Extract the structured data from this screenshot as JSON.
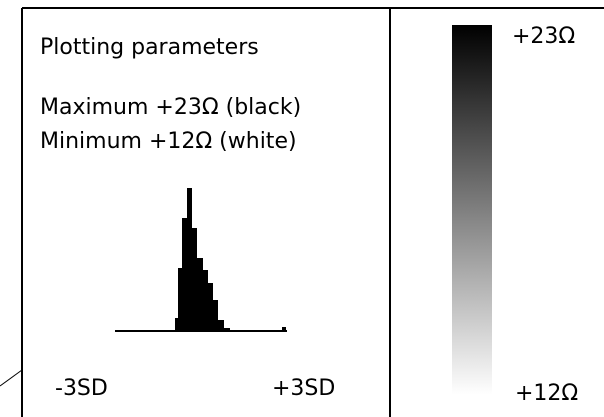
{
  "left_panel": {
    "title": "Plotting parameters",
    "maximum": "Maximum +23Ω (black)",
    "minimum": "Minimum +12Ω (white)",
    "axis_left": "-3SD",
    "axis_right": "+3SD"
  },
  "scale_bar": {
    "top_label": "+23Ω",
    "bottom_label": "+12Ω"
  }
}
